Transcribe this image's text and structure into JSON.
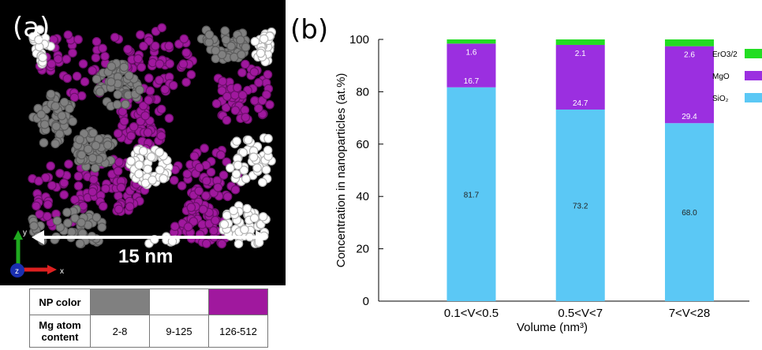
{
  "panel_a": {
    "label": "(a)",
    "scale_bar": "15 nm",
    "axis_labels": {
      "y": "y",
      "z": "z",
      "x": "x"
    },
    "np_colors": {
      "low": "#808080",
      "mid": "#ffffff",
      "high": "#a0189e"
    },
    "table": {
      "row1_label": "NP color",
      "row2_label": "Mg atom content",
      "ranges": [
        "2-8",
        "9-125",
        "126-512"
      ]
    }
  },
  "panel_b": {
    "label": "(b)"
  },
  "chart_data": {
    "type": "bar",
    "stacked": true,
    "categories": [
      "0.1<V<0.5",
      "0.5<V<7",
      "7<V<28"
    ],
    "series": [
      {
        "name": "SiO₂",
        "values": [
          81.7,
          73.2,
          68.0
        ],
        "labels": [
          "81.7",
          "73.2",
          "68.0"
        ],
        "color": "#5bc8f5"
      },
      {
        "name": "MgO",
        "values": [
          16.7,
          24.7,
          29.4
        ],
        "labels": [
          "16.7",
          "24.7",
          "29.4"
        ],
        "color": "#9b2fe0"
      },
      {
        "name": "ErO3/2",
        "values": [
          1.6,
          2.1,
          2.6
        ],
        "labels": [
          "1.6",
          "2.1",
          "2.6"
        ],
        "color": "#22dd22"
      }
    ],
    "xlabel": "Volume (nm³)",
    "ylabel": "Concentration in nanoparticles (at.%)",
    "ylim": [
      0,
      100
    ],
    "yticks": [
      0,
      20,
      40,
      60,
      80,
      100
    ],
    "grid": false,
    "legend_position": "right"
  }
}
